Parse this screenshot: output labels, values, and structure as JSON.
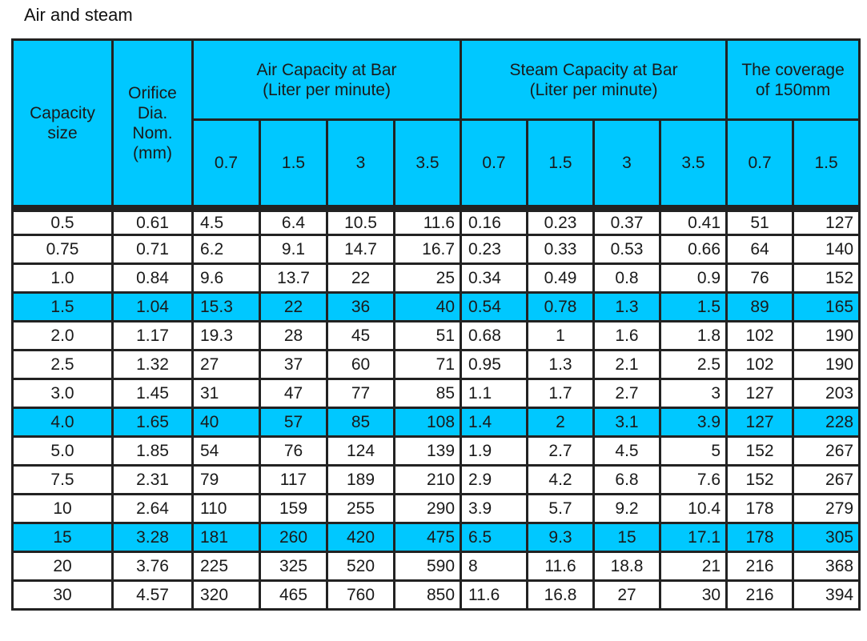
{
  "title": "Air and steam",
  "headers": {
    "capacity_size": "Capacity size",
    "capacity_size_line1": "Capacity",
    "capacity_size_line2": "size",
    "orifice_line1": "Orifice",
    "orifice_line2": "Dia.",
    "orifice_line3": "Nom.",
    "orifice_line4": "(mm)",
    "air_line1": "Air Capacity at Bar",
    "air_line2": "(Liter per minute)",
    "steam_line1": "Steam Capacity at Bar",
    "steam_line2": "(Liter per minute)",
    "coverage_line1": "The coverage",
    "coverage_line2": "of 150mm",
    "air_bars": [
      "0.7",
      "1.5",
      "3",
      "3.5"
    ],
    "steam_bars": [
      "0.7",
      "1.5",
      "3",
      "3.5"
    ],
    "coverage_bars": [
      "0.7",
      "1.5"
    ]
  },
  "highlight_color": "#00c8ff",
  "rows": [
    {
      "size": "0.5",
      "orifice": "0.61",
      "air": [
        "4.5",
        "6.4",
        "10.5",
        "11.6"
      ],
      "steam": [
        "0.16",
        "0.23",
        "0.37",
        "0.41"
      ],
      "coverage": [
        "51",
        "127"
      ],
      "highlight": false
    },
    {
      "size": "0.75",
      "orifice": "0.71",
      "air": [
        "6.2",
        "9.1",
        "14.7",
        "16.7"
      ],
      "steam": [
        "0.23",
        "0.33",
        "0.53",
        "0.66"
      ],
      "coverage": [
        "64",
        "140"
      ],
      "highlight": false
    },
    {
      "size": "1.0",
      "orifice": "0.84",
      "air": [
        "9.6",
        "13.7",
        "22",
        "25"
      ],
      "steam": [
        "0.34",
        "0.49",
        "0.8",
        "0.9"
      ],
      "coverage": [
        "76",
        "152"
      ],
      "highlight": false
    },
    {
      "size": "1.5",
      "orifice": "1.04",
      "air": [
        "15.3",
        "22",
        "36",
        "40"
      ],
      "steam": [
        "0.54",
        "0.78",
        "1.3",
        "1.5"
      ],
      "coverage": [
        "89",
        "165"
      ],
      "highlight": true
    },
    {
      "size": "2.0",
      "orifice": "1.17",
      "air": [
        "19.3",
        "28",
        "45",
        "51"
      ],
      "steam": [
        "0.68",
        "1",
        "1.6",
        "1.8"
      ],
      "coverage": [
        "102",
        "190"
      ],
      "highlight": false
    },
    {
      "size": "2.5",
      "orifice": "1.32",
      "air": [
        "27",
        "37",
        "60",
        "71"
      ],
      "steam": [
        "0.95",
        "1.3",
        "2.1",
        "2.5"
      ],
      "coverage": [
        "102",
        "190"
      ],
      "highlight": false
    },
    {
      "size": "3.0",
      "orifice": "1.45",
      "air": [
        "31",
        "47",
        "77",
        "85"
      ],
      "steam": [
        "1.1",
        "1.7",
        "2.7",
        "3"
      ],
      "coverage": [
        "127",
        "203"
      ],
      "highlight": false
    },
    {
      "size": "4.0",
      "orifice": "1.65",
      "air": [
        "40",
        "57",
        "85",
        "108"
      ],
      "steam": [
        "1.4",
        "2",
        "3.1",
        "3.9"
      ],
      "coverage": [
        "127",
        "228"
      ],
      "highlight": true
    },
    {
      "size": "5.0",
      "orifice": "1.85",
      "air": [
        "54",
        "76",
        "124",
        "139"
      ],
      "steam": [
        "1.9",
        "2.7",
        "4.5",
        "5"
      ],
      "coverage": [
        "152",
        "267"
      ],
      "highlight": false
    },
    {
      "size": "7.5",
      "orifice": "2.31",
      "air": [
        "79",
        "117",
        "189",
        "210"
      ],
      "steam": [
        "2.9",
        "4.2",
        "6.8",
        "7.6"
      ],
      "coverage": [
        "152",
        "267"
      ],
      "highlight": false
    },
    {
      "size": "10",
      "orifice": "2.64",
      "air": [
        "110",
        "159",
        "255",
        "290"
      ],
      "steam": [
        "3.9",
        "5.7",
        "9.2",
        "10.4"
      ],
      "coverage": [
        "178",
        "279"
      ],
      "highlight": false
    },
    {
      "size": "15",
      "orifice": "3.28",
      "air": [
        "181",
        "260",
        "420",
        "475"
      ],
      "steam": [
        "6.5",
        "9.3",
        "15",
        "17.1"
      ],
      "coverage": [
        "178",
        "305"
      ],
      "highlight": true
    },
    {
      "size": "20",
      "orifice": "3.76",
      "air": [
        "225",
        "325",
        "520",
        "590"
      ],
      "steam": [
        "8",
        "11.6",
        "18.8",
        "21"
      ],
      "coverage": [
        "216",
        "368"
      ],
      "highlight": false
    },
    {
      "size": "30",
      "orifice": "4.57",
      "air": [
        "320",
        "465",
        "760",
        "850"
      ],
      "steam": [
        "11.6",
        "16.8",
        "27",
        "30"
      ],
      "coverage": [
        "216",
        "394"
      ],
      "highlight": false
    }
  ]
}
